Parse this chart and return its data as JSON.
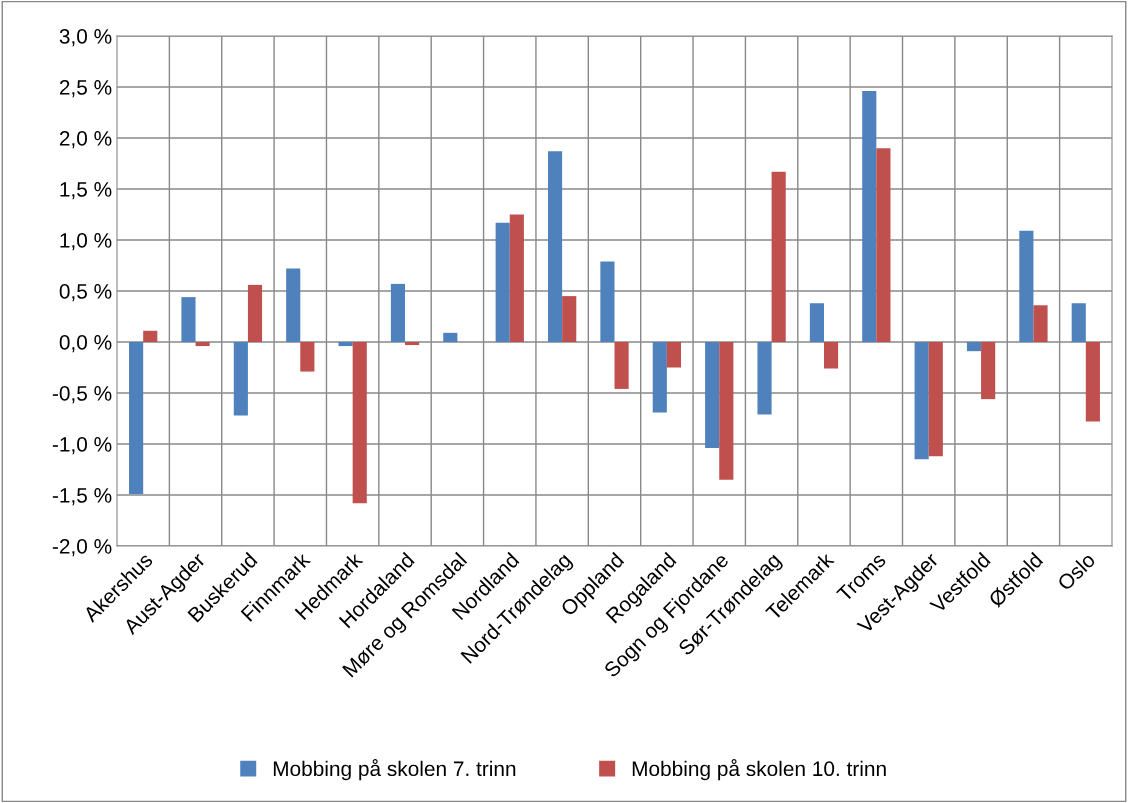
{
  "chart_data": {
    "type": "bar",
    "categories": [
      "Akershus",
      "Aust-Agder",
      "Buskerud",
      "Finnmark",
      "Hedmark",
      "Hordaland",
      "Møre og Romsdal",
      "Nordland",
      "Nord-Trøndelag",
      "Oppland",
      "Rogaland",
      "Sogn og Fjordane",
      "Sør-Trøndelag",
      "Telemark",
      "Troms",
      "Vest-Agder",
      "Vestfold",
      "Østfold",
      "Oslo"
    ],
    "series": [
      {
        "name": "Mobbing på skolen 7. trinn",
        "color": "#4f81bd",
        "values": [
          -1.49,
          0.44,
          -0.72,
          0.72,
          -0.04,
          0.57,
          0.09,
          1.17,
          1.87,
          0.79,
          -0.69,
          -1.04,
          -0.71,
          0.38,
          2.46,
          -1.15,
          -0.09,
          1.09,
          0.38
        ]
      },
      {
        "name": "Mobbing på skolen 10. trinn",
        "color": "#c0504d",
        "values": [
          0.11,
          -0.04,
          0.56,
          -0.29,
          -1.58,
          -0.03,
          0.0,
          1.25,
          0.45,
          -0.46,
          -0.25,
          -1.35,
          1.67,
          -0.26,
          1.9,
          -1.12,
          -0.56,
          0.36,
          -0.78
        ]
      }
    ],
    "ylim": [
      -2.0,
      3.0
    ],
    "yticks": [
      {
        "value": -2.0,
        "label": "-2,0 %"
      },
      {
        "value": -1.5,
        "label": "-1,5 %"
      },
      {
        "value": -1.0,
        "label": "-1,0 %"
      },
      {
        "value": -0.5,
        "label": "-0,5 %"
      },
      {
        "value": 0.0,
        "label": "0,0 %"
      },
      {
        "value": 0.5,
        "label": "0,5 %"
      },
      {
        "value": 1.0,
        "label": "1,0 %"
      },
      {
        "value": 1.5,
        "label": "1,5 %"
      },
      {
        "value": 2.0,
        "label": "2,0 %"
      },
      {
        "value": 2.5,
        "label": "2,5 %"
      },
      {
        "value": 3.0,
        "label": "3,0 %"
      }
    ],
    "grid": true,
    "legend": "bottom"
  }
}
